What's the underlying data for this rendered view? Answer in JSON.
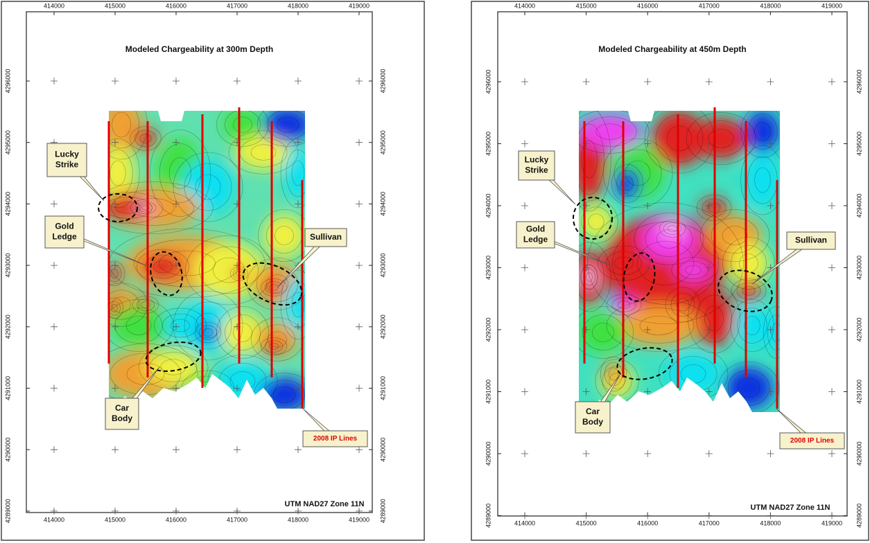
{
  "panels": [
    {
      "title": "Modeled Chargeability at 300m Depth",
      "xticks": [
        414000,
        415000,
        416000,
        417000,
        418000,
        419000
      ],
      "yticks": [
        4296000,
        4295000,
        4294000,
        4293000,
        4292000,
        4291000,
        4290000,
        4289000
      ],
      "lucky_strike": [
        "Lucky",
        "Strike"
      ],
      "gold_ledge": [
        "Gold",
        "Ledge"
      ],
      "sullivan": [
        "Sullivan"
      ],
      "car_body": [
        "Car",
        "Body"
      ],
      "ip_lines": "2008 IP Lines",
      "projection": "UTM NAD27 Zone 11N"
    },
    {
      "title": "Modeled Chargeability at 450m Depth",
      "xticks": [
        414000,
        415000,
        416000,
        417000,
        418000,
        419000
      ],
      "yticks": [
        4296000,
        4295000,
        4294000,
        4293000,
        4292000,
        4291000,
        4290000,
        4289000
      ],
      "lucky_strike": [
        "Lucky",
        "Strike"
      ],
      "gold_ledge": [
        "Gold",
        "Ledge"
      ],
      "sullivan": [
        "Sullivan"
      ],
      "car_body": [
        "Car",
        "Body"
      ],
      "ip_lines": "2008 IP Lines",
      "projection": "UTM NAD27 Zone 11N"
    }
  ]
}
